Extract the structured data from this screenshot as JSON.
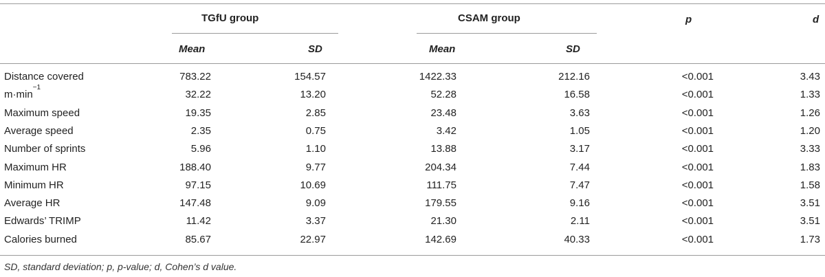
{
  "table": {
    "groups": {
      "tgfu": "TGfU group",
      "csam": "CSAM group",
      "p": "p",
      "d": "d"
    },
    "subheaders": {
      "tgfu_mean": "Mean",
      "tgfu_sd": "SD",
      "csam_mean": "Mean",
      "csam_sd": "SD"
    },
    "rows": [
      {
        "label": "Distance covered",
        "tgfu_mean": "783.22",
        "tgfu_sd": "154.57",
        "csam_mean": "1422.33",
        "csam_sd": "212.16",
        "p": "<0.001",
        "d": "3.43"
      },
      {
        "label": "m·min",
        "label_sup": "−1",
        "tgfu_mean": "32.22",
        "tgfu_sd": "13.20",
        "csam_mean": "52.28",
        "csam_sd": "16.58",
        "p": "<0.001",
        "d": "1.33"
      },
      {
        "label": "Maximum speed",
        "tgfu_mean": "19.35",
        "tgfu_sd": "2.85",
        "csam_mean": "23.48",
        "csam_sd": "3.63",
        "p": "<0.001",
        "d": "1.26"
      },
      {
        "label": "Average speed",
        "tgfu_mean": "2.35",
        "tgfu_sd": "0.75",
        "csam_mean": "3.42",
        "csam_sd": "1.05",
        "p": "<0.001",
        "d": "1.20"
      },
      {
        "label": "Number of sprints",
        "tgfu_mean": "5.96",
        "tgfu_sd": "1.10",
        "csam_mean": "13.88",
        "csam_sd": "3.17",
        "p": "<0.001",
        "d": "3.33"
      },
      {
        "label": "Maximum HR",
        "tgfu_mean": "188.40",
        "tgfu_sd": "9.77",
        "csam_mean": "204.34",
        "csam_sd": "7.44",
        "p": "<0.001",
        "d": "1.83"
      },
      {
        "label": "Minimum HR",
        "tgfu_mean": "97.15",
        "tgfu_sd": "10.69",
        "csam_mean": "111.75",
        "csam_sd": "7.47",
        "p": "<0.001",
        "d": "1.58"
      },
      {
        "label": "Average HR",
        "tgfu_mean": "147.48",
        "tgfu_sd": "9.09",
        "csam_mean": "179.55",
        "csam_sd": "9.16",
        "p": "<0.001",
        "d": "3.51"
      },
      {
        "label": "Edwards’ TRIMP",
        "tgfu_mean": "11.42",
        "tgfu_sd": "3.37",
        "csam_mean": "21.30",
        "csam_sd": "2.11",
        "p": "<0.001",
        "d": "3.51"
      },
      {
        "label": "Calories burned",
        "tgfu_mean": "85.67",
        "tgfu_sd": "22.97",
        "csam_mean": "142.69",
        "csam_sd": "40.33",
        "p": "<0.001",
        "d": "1.73"
      }
    ],
    "footnote": "SD, standard deviation; p, p-value; d, Cohen’s d value."
  }
}
